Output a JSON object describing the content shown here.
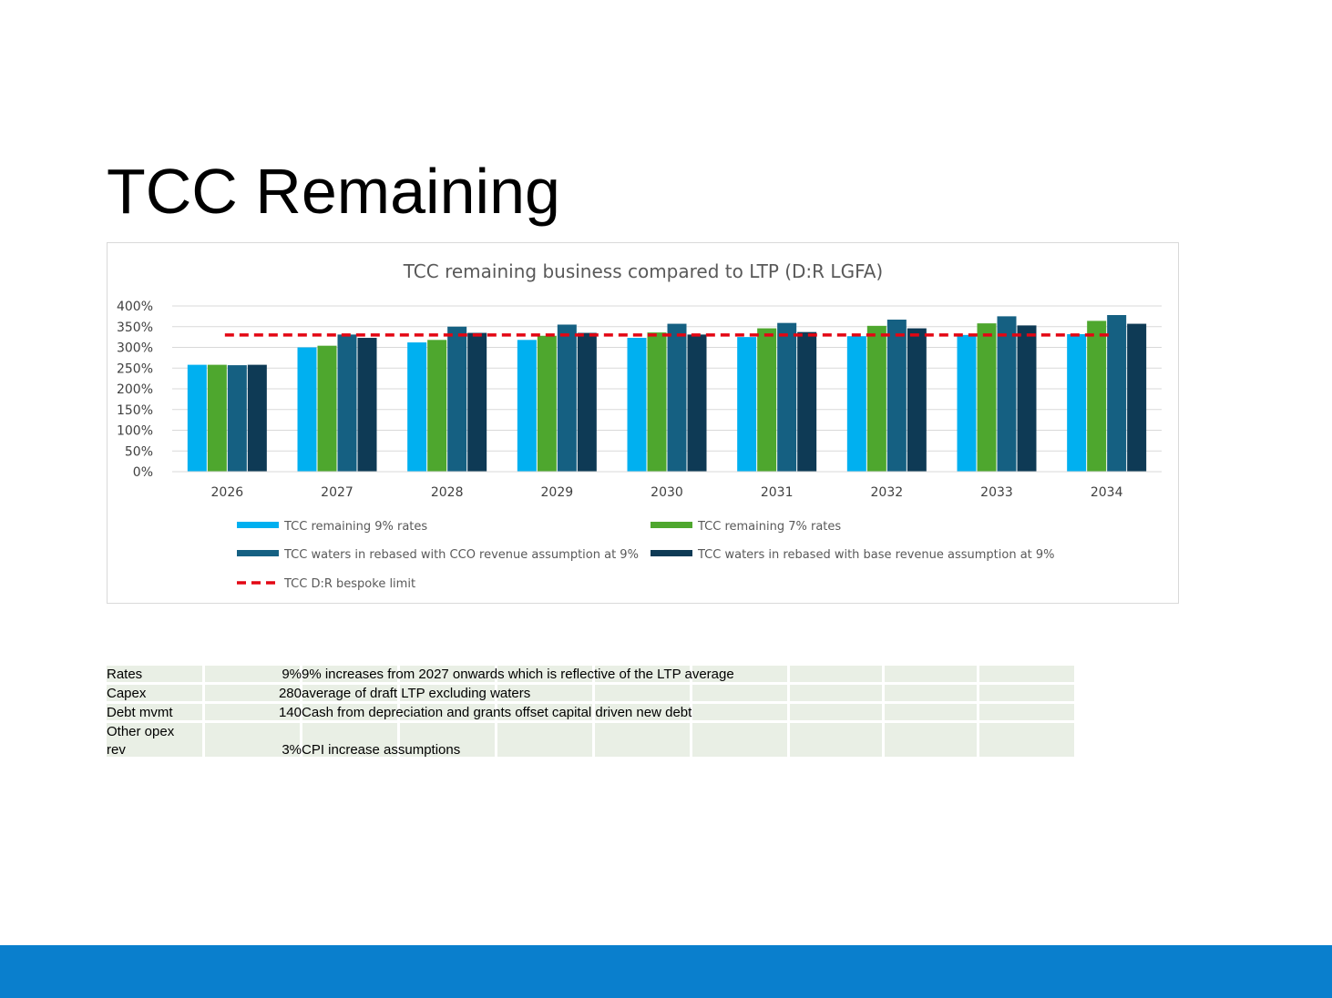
{
  "slide": {
    "title": "TCC Remaining"
  },
  "colors": {
    "rates9": "#00b0f0",
    "rates7": "#4ea72e",
    "cco": "#156082",
    "base": "#0e3a55",
    "limit": "#e30613",
    "footer": "#0a7fcd"
  },
  "chart_data": {
    "type": "bar",
    "title": "TCC remaining business compared to LTP (D:R LGFA)",
    "categories": [
      "2026",
      "2027",
      "2028",
      "2029",
      "2030",
      "2031",
      "2032",
      "2033",
      "2034"
    ],
    "y_ticks": [
      "0%",
      "50%",
      "100%",
      "150%",
      "200%",
      "250%",
      "300%",
      "350%",
      "400%"
    ],
    "ylim": [
      0,
      400
    ],
    "grid": true,
    "legend_position": "bottom",
    "series": [
      {
        "name": "TCC remaining 9% rates",
        "color": "#00b0f0",
        "values": [
          258,
          300,
          312,
          318,
          323,
          325,
          327,
          330,
          332
        ]
      },
      {
        "name": "TCC remaining 7% rates",
        "color": "#4ea72e",
        "values": [
          258,
          304,
          318,
          328,
          336,
          346,
          352,
          358,
          364
        ]
      },
      {
        "name": "TCC waters in rebased with CCO revenue assumption at 9%",
        "color": "#156082",
        "values": [
          257,
          331,
          350,
          355,
          357,
          359,
          367,
          375,
          378
        ]
      },
      {
        "name": "TCC waters in rebased with base revenue assumption at 9%",
        "color": "#0e3a55",
        "values": [
          258,
          323,
          335,
          335,
          331,
          337,
          346,
          353,
          357
        ]
      }
    ],
    "reference_line": {
      "name": "TCC D:R bespoke limit",
      "color": "#e30613",
      "value": 330
    }
  },
  "table": {
    "rows": [
      {
        "label": "Rates",
        "value": "9%",
        "note": "9% increases from 2027 onwards which is reflective of the LTP average"
      },
      {
        "label": "Capex",
        "value": "280",
        "note": "average of draft LTP excluding waters"
      },
      {
        "label": "Debt mvmt",
        "value": "140",
        "note": "Cash from depreciation and grants offset capital driven new debt"
      },
      {
        "label_line1": "Other opex",
        "label_line2": "rev",
        "value": "3%",
        "note": "CPI increase assumptions"
      }
    ]
  }
}
